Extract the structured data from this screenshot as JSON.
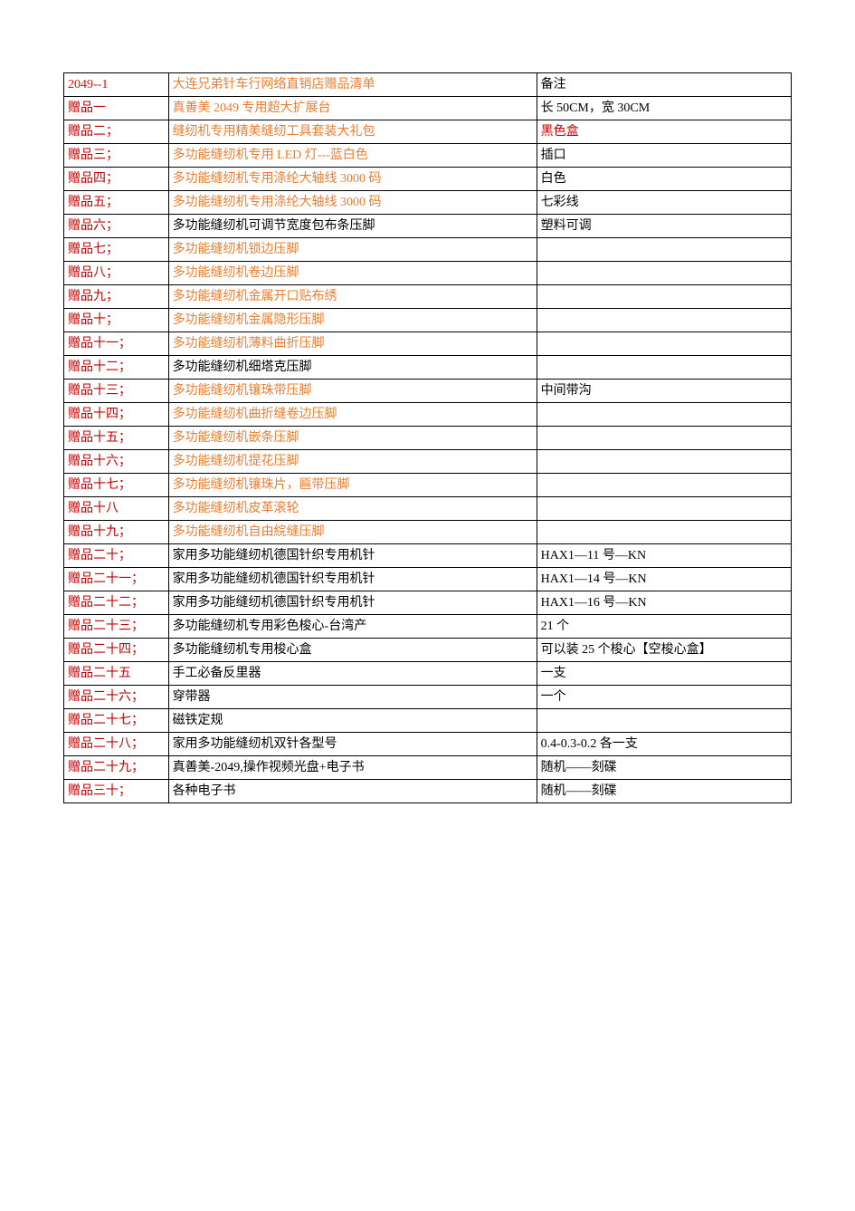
{
  "header": {
    "code": "2049--1",
    "title": "大连兄弟针车行网络直销店赠品清单",
    "note_header": "备注"
  },
  "colors": {
    "code": "#ff0000",
    "title": "#ed7d31",
    "note_header": "#000000",
    "label_brown": "#c00000",
    "desc_orange": "#ed7d31",
    "desc_black": "#000000",
    "note_black": "#000000",
    "note_brown": "#c00000"
  },
  "rows": [
    {
      "label": "赠品一",
      "desc": "真善美 2049 专用超大扩展台",
      "desc_color": "orange",
      "note": "长 50CM，宽 30CM"
    },
    {
      "label": "赠品二；",
      "desc": "缝纫机专用精美缝纫工具套装大礼包",
      "desc_color": "orange",
      "note": "黑色盒",
      "note_color": "brown"
    },
    {
      "label": "赠品三；",
      "desc": "多功能缝纫机专用 LED 灯---蓝白色",
      "desc_color": "orange",
      "note": "插口"
    },
    {
      "label": "赠品四；",
      "desc": "多功能缝纫机专用涤纶大轴线 3000 码",
      "desc_color": "orange",
      "note": "白色"
    },
    {
      "label": "赠品五；",
      "desc": "多功能缝纫机专用涤纶大轴线 3000 码",
      "desc_color": "orange",
      "note": "七彩线"
    },
    {
      "label": "赠品六；",
      "desc": "多功能缝纫机可调节宽度包布条压脚",
      "desc_color": "black",
      "note": "塑料可调"
    },
    {
      "label": "赠品七；",
      "desc": "多功能缝纫机锁边压脚",
      "desc_color": "orange",
      "note": ""
    },
    {
      "label": "赠品八；",
      "desc": "多功能缝纫机卷边压脚",
      "desc_color": "orange",
      "note": ""
    },
    {
      "label": "赠品九；",
      "desc": "多功能缝纫机金属开口贴布绣",
      "desc_color": "orange",
      "note": ""
    },
    {
      "label": "赠品十；",
      "desc": "多功能缝纫机金属隐形压脚",
      "desc_color": "orange",
      "note": ""
    },
    {
      "label": "赠品十一；",
      "desc": "多功能缝纫机薄料曲折压脚",
      "desc_color": "orange",
      "note": ""
    },
    {
      "label": "赠品十二；",
      "desc": "多功能缝纫机细塔克压脚",
      "desc_color": "black",
      "note": ""
    },
    {
      "label": "赠品十三；",
      "desc": "多功能缝纫机镶珠带压脚",
      "desc_color": "orange",
      "note": "中间带沟"
    },
    {
      "label": "赠品十四；",
      "desc": "多功能缝纫机曲折缝卷边压脚",
      "desc_color": "orange",
      "note": ""
    },
    {
      "label": "赠品十五；",
      "desc": "多功能缝纫机嵌条压脚",
      "desc_color": "orange",
      "note": ""
    },
    {
      "label": "赠品十六；",
      "desc": "多功能缝纫机提花压脚",
      "desc_color": "orange",
      "note": ""
    },
    {
      "label": "赠品十七；",
      "desc": "多功能缝纫机镶珠片，匾带压脚",
      "desc_color": "orange",
      "note": ""
    },
    {
      "label": "赠品十八",
      "desc": "多功能缝纫机皮革滚轮",
      "desc_color": "orange",
      "note": ""
    },
    {
      "label": "赠品十九；",
      "desc": "多功能缝纫机自由綄缝压脚",
      "desc_color": "orange",
      "note": ""
    },
    {
      "label": "赠品二十；",
      "desc": "家用多功能缝纫机德国针织专用机针",
      "desc_color": "black",
      "note": "HAX1—11 号—KN"
    },
    {
      "label": "赠品二十一；",
      "desc": "家用多功能缝纫机德国针织专用机针",
      "desc_color": "black",
      "note": "HAX1—14 号—KN"
    },
    {
      "label": "赠品二十二；",
      "desc": "家用多功能缝纫机德国针织专用机针",
      "desc_color": "black",
      "note": "HAX1—16 号—KN"
    },
    {
      "label": "赠品二十三；",
      "desc": "多功能缝纫机专用彩色梭心-台湾产",
      "desc_color": "black",
      "note": "21 个"
    },
    {
      "label": "赠品二十四；",
      "desc": "多功能缝纫机专用梭心盒",
      "desc_color": "black",
      "note": "可以装 25 个梭心【空梭心盒】"
    },
    {
      "label": "赠品二十五",
      "desc": "手工必备反里器",
      "desc_color": "black",
      "note": "一支"
    },
    {
      "label": "赠品二十六；",
      "desc": "穿带器",
      "desc_color": "black",
      "note": "一个"
    },
    {
      "label": "赠品二十七；",
      "desc": "磁铁定规",
      "desc_color": "black",
      "note": ""
    },
    {
      "label": "赠品二十八；",
      "desc": "家用多功能缝纫机双针各型号",
      "desc_color": "black",
      "note": "0.4-0.3-0.2 各一支"
    },
    {
      "label": "赠品二十九；",
      "desc": "真善美-2049,操作视频光盘+电子书",
      "desc_color": "black",
      "note": "随机——刻碟"
    },
    {
      "label": "赠品三十；",
      "desc": "各种电子书",
      "desc_color": "black",
      "note": "随机——刻碟"
    }
  ]
}
